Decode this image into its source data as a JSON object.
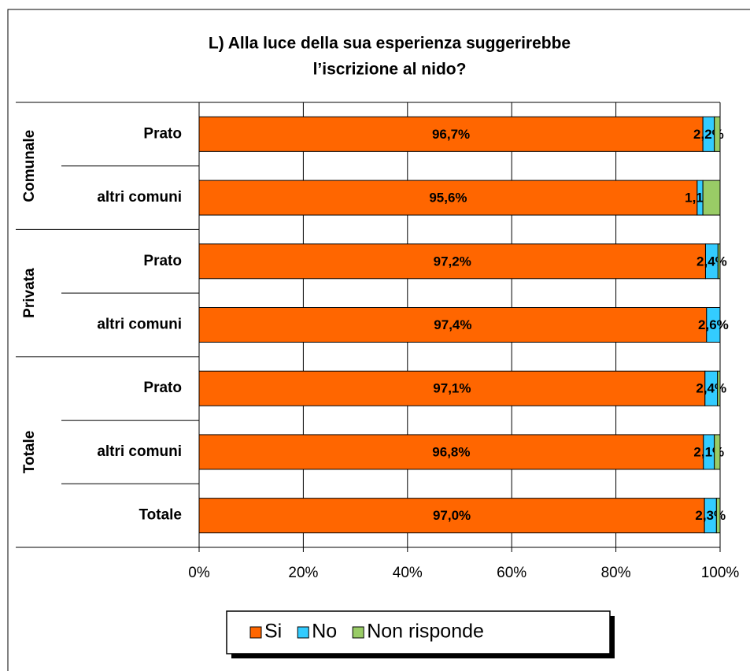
{
  "chart_data": {
    "type": "stacked-bar-horizontal",
    "title": [
      "L) Alla luce della sua esperienza suggerirebbe",
      "l’iscrizione al nido?"
    ],
    "groups": [
      {
        "name": "Comunale",
        "categories": [
          "Prato",
          "altri comuni"
        ]
      },
      {
        "name": "Privata",
        "categories": [
          "Prato",
          "altri comuni"
        ]
      },
      {
        "name": "Totale",
        "categories": [
          "Prato",
          "altri comuni",
          "Totale"
        ]
      }
    ],
    "series": [
      {
        "name": "Si",
        "color": "#ff6600",
        "values": [
          96.7,
          95.6,
          97.2,
          97.4,
          97.1,
          96.8,
          97.0
        ],
        "value_labels": [
          "96,7%",
          "95,6%",
          "97,2%",
          "97,4%",
          "97,1%",
          "96,8%",
          "97,0%"
        ]
      },
      {
        "name": "No",
        "color": "#33ccff",
        "values": [
          2.2,
          1.1,
          2.4,
          2.6,
          2.4,
          2.1,
          2.3
        ],
        "value_labels": [
          "2,2%",
          "1,1%",
          "2,4%",
          "2,6%",
          "2,4%",
          "2,1%",
          "2,3%"
        ]
      },
      {
        "name": "Non risponde",
        "color": "#99cc66",
        "values": [
          1.1,
          3.3,
          0.4,
          0,
          0.5,
          1.1,
          0.7
        ]
      }
    ],
    "xlim": [
      0,
      100
    ],
    "xticks": [
      {
        "value": 0,
        "label": "0%"
      },
      {
        "value": 20,
        "label": "20%"
      },
      {
        "value": 40,
        "label": "40%"
      },
      {
        "value": 60,
        "label": "60%"
      },
      {
        "value": 80,
        "label": "80%"
      },
      {
        "value": 100,
        "label": "100%"
      }
    ],
    "grid": true
  }
}
